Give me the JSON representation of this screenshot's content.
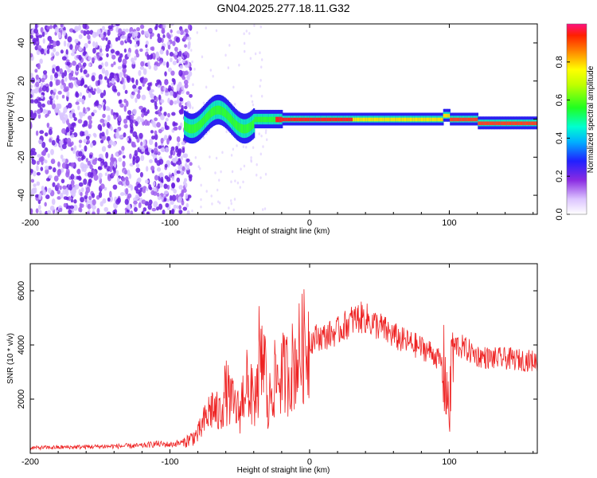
{
  "chart_data": [
    {
      "type": "heatmap",
      "title": "GN04.2025.277.18.11.G32",
      "xlabel": "Height of straight line (km)",
      "ylabel": "Frequency (Hz)",
      "xlim": [
        -200,
        163
      ],
      "ylim": [
        -50,
        50
      ],
      "xticks": [
        -200,
        -100,
        0,
        100
      ],
      "yticks": [
        -40,
        -20,
        0,
        20,
        40
      ],
      "colorbar": {
        "label": "Normalized spectral amplitude",
        "range": [
          0,
          1
        ],
        "ticks": [
          "0.0",
          "0.2",
          "0.4",
          "0.6",
          "0.8"
        ]
      },
      "features": {
        "noise_region_x": [
          -200,
          -85
        ],
        "carrier_frequency_hz": 0,
        "signal_start_x": -90,
        "peak_amplitude_region_x": [
          -25,
          100
        ]
      }
    },
    {
      "type": "line",
      "xlabel": "Height of straight line (km)",
      "ylabel": "SNR (10 * v/v)",
      "xlim": [
        -200,
        163
      ],
      "ylim": [
        0,
        7000
      ],
      "xticks": [
        -200,
        -100,
        0,
        100
      ],
      "yticks": [
        2000,
        4000,
        6000
      ],
      "series": [
        {
          "name": "SNR",
          "color": "#ee2222",
          "x": [
            -200,
            -180,
            -160,
            -140,
            -120,
            -110,
            -100,
            -90,
            -80,
            -75,
            -70,
            -65,
            -60,
            -55,
            -50,
            -45,
            -40,
            -35,
            -32,
            -30,
            -28,
            -25,
            -20,
            -15,
            -10,
            -5,
            0,
            5,
            10,
            15,
            20,
            25,
            30,
            35,
            40,
            45,
            50,
            55,
            60,
            65,
            70,
            75,
            80,
            85,
            90,
            95,
            98,
            100,
            102,
            105,
            110,
            120,
            130,
            140,
            150,
            163
          ],
          "values": [
            200,
            220,
            240,
            260,
            280,
            350,
            320,
            400,
            700,
            1200,
            1700,
            1400,
            2300,
            1800,
            1500,
            2900,
            1800,
            3100,
            3700,
            1200,
            2300,
            2700,
            2900,
            3000,
            3400,
            3900,
            4100,
            4300,
            4300,
            4400,
            4500,
            4700,
            4900,
            5000,
            5000,
            4800,
            4700,
            4500,
            4350,
            4200,
            4100,
            4000,
            3900,
            3800,
            3600,
            3300,
            2500,
            1200,
            3800,
            4000,
            3900,
            3600,
            3500,
            3500,
            3450,
            3400
          ]
        }
      ]
    }
  ]
}
